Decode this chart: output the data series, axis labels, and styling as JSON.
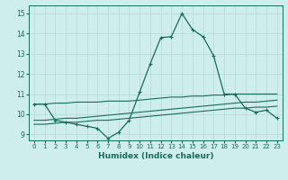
{
  "xlabel": "Humidex (Indice chaleur)",
  "bg_color": "#cdeeed",
  "grid_color": "#b8d8d6",
  "line_color": "#1a6b5a",
  "xlim": [
    -0.5,
    23.5
  ],
  "ylim": [
    8.7,
    15.4
  ],
  "yticks": [
    9,
    10,
    11,
    12,
    13,
    14,
    15
  ],
  "xticks": [
    0,
    1,
    2,
    3,
    4,
    5,
    6,
    7,
    8,
    9,
    10,
    11,
    12,
    13,
    14,
    15,
    16,
    17,
    18,
    19,
    20,
    21,
    22,
    23
  ],
  "series": [
    [
      10.5,
      10.5,
      9.7,
      9.6,
      9.5,
      9.4,
      9.3,
      8.8,
      9.1,
      9.7,
      11.1,
      12.5,
      13.8,
      13.85,
      15.0,
      14.2,
      13.85,
      12.9,
      11.0,
      11.0,
      10.3,
      10.1,
      10.2,
      9.8
    ],
    [
      10.5,
      10.5,
      10.55,
      10.55,
      10.6,
      10.6,
      10.6,
      10.65,
      10.65,
      10.65,
      10.7,
      10.75,
      10.8,
      10.85,
      10.85,
      10.9,
      10.9,
      10.95,
      10.95,
      11.0,
      11.0,
      11.0,
      11.0,
      11.0
    ],
    [
      9.7,
      9.7,
      9.75,
      9.8,
      9.8,
      9.85,
      9.9,
      9.95,
      10.0,
      10.05,
      10.1,
      10.15,
      10.2,
      10.25,
      10.3,
      10.35,
      10.4,
      10.45,
      10.5,
      10.55,
      10.6,
      10.6,
      10.65,
      10.7
    ],
    [
      9.5,
      9.5,
      9.55,
      9.6,
      9.6,
      9.65,
      9.7,
      9.7,
      9.75,
      9.8,
      9.85,
      9.9,
      9.95,
      10.0,
      10.05,
      10.1,
      10.15,
      10.2,
      10.25,
      10.3,
      10.3,
      10.35,
      10.35,
      10.4
    ]
  ]
}
